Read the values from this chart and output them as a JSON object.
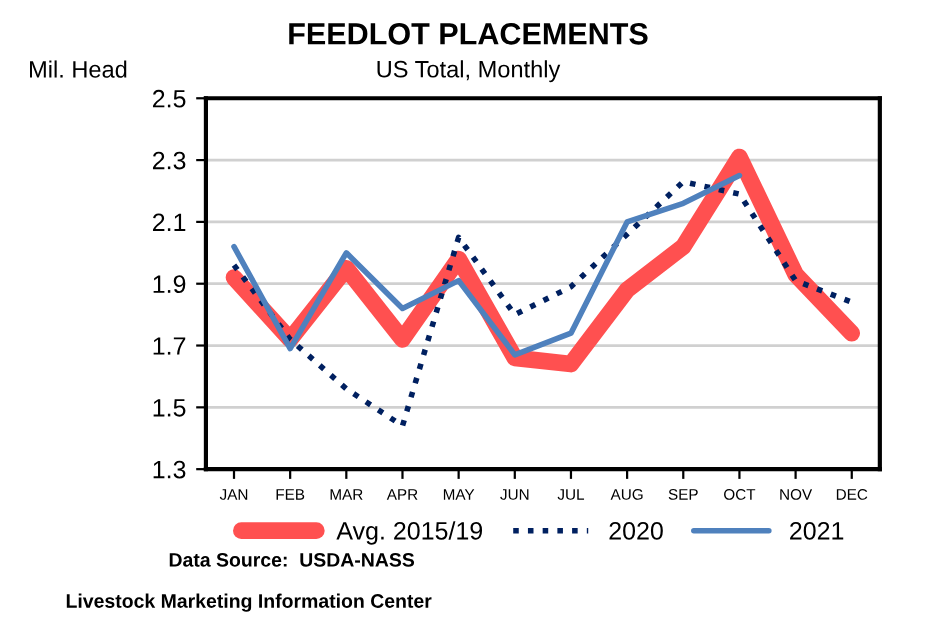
{
  "chart_data": {
    "type": "line",
    "title": "FEEDLOT PLACEMENTS",
    "subtitle": "US Total, Monthly",
    "ylabel": "Mil. Head",
    "categories": [
      "JAN",
      "FEB",
      "MAR",
      "APR",
      "MAY",
      "JUN",
      "JUL",
      "AUG",
      "SEP",
      "OCT",
      "NOV",
      "DEC"
    ],
    "series": [
      {
        "name": "Avg. 2015/19",
        "color": "#ff5050",
        "line_style": "solid",
        "values": [
          1.92,
          1.72,
          1.95,
          1.72,
          1.98,
          1.66,
          1.64,
          1.88,
          2.02,
          2.31,
          1.93,
          1.74
        ]
      },
      {
        "name": "2020",
        "color": "#002060",
        "line_style": "dotted",
        "values": [
          1.96,
          1.72,
          1.56,
          1.44,
          2.05,
          1.8,
          1.89,
          2.06,
          2.23,
          2.19,
          1.91,
          1.84
        ]
      },
      {
        "name": "2021",
        "color": "#4f81bd",
        "line_style": "solid",
        "values": [
          2.02,
          1.69,
          2.0,
          1.82,
          1.91,
          1.67,
          1.74,
          2.1,
          2.16,
          2.25,
          null,
          null
        ]
      }
    ],
    "ylim": [
      1.3,
      2.5
    ],
    "yticks": [
      {
        "value": 1.3,
        "label": "1.3"
      },
      {
        "value": 1.5,
        "label": "1.5"
      },
      {
        "value": 1.7,
        "label": "1.7"
      },
      {
        "value": 1.9,
        "label": "1.9"
      },
      {
        "value": 2.1,
        "label": "2.1"
      },
      {
        "value": 2.3,
        "label": "2.3"
      },
      {
        "value": 2.5,
        "label": "2.5"
      }
    ],
    "grid": "y",
    "legend": "bottom",
    "marker": "none",
    "annotations": [
      "Data Source:  USDA-NASS",
      "Livestock Marketing Information Center"
    ]
  }
}
